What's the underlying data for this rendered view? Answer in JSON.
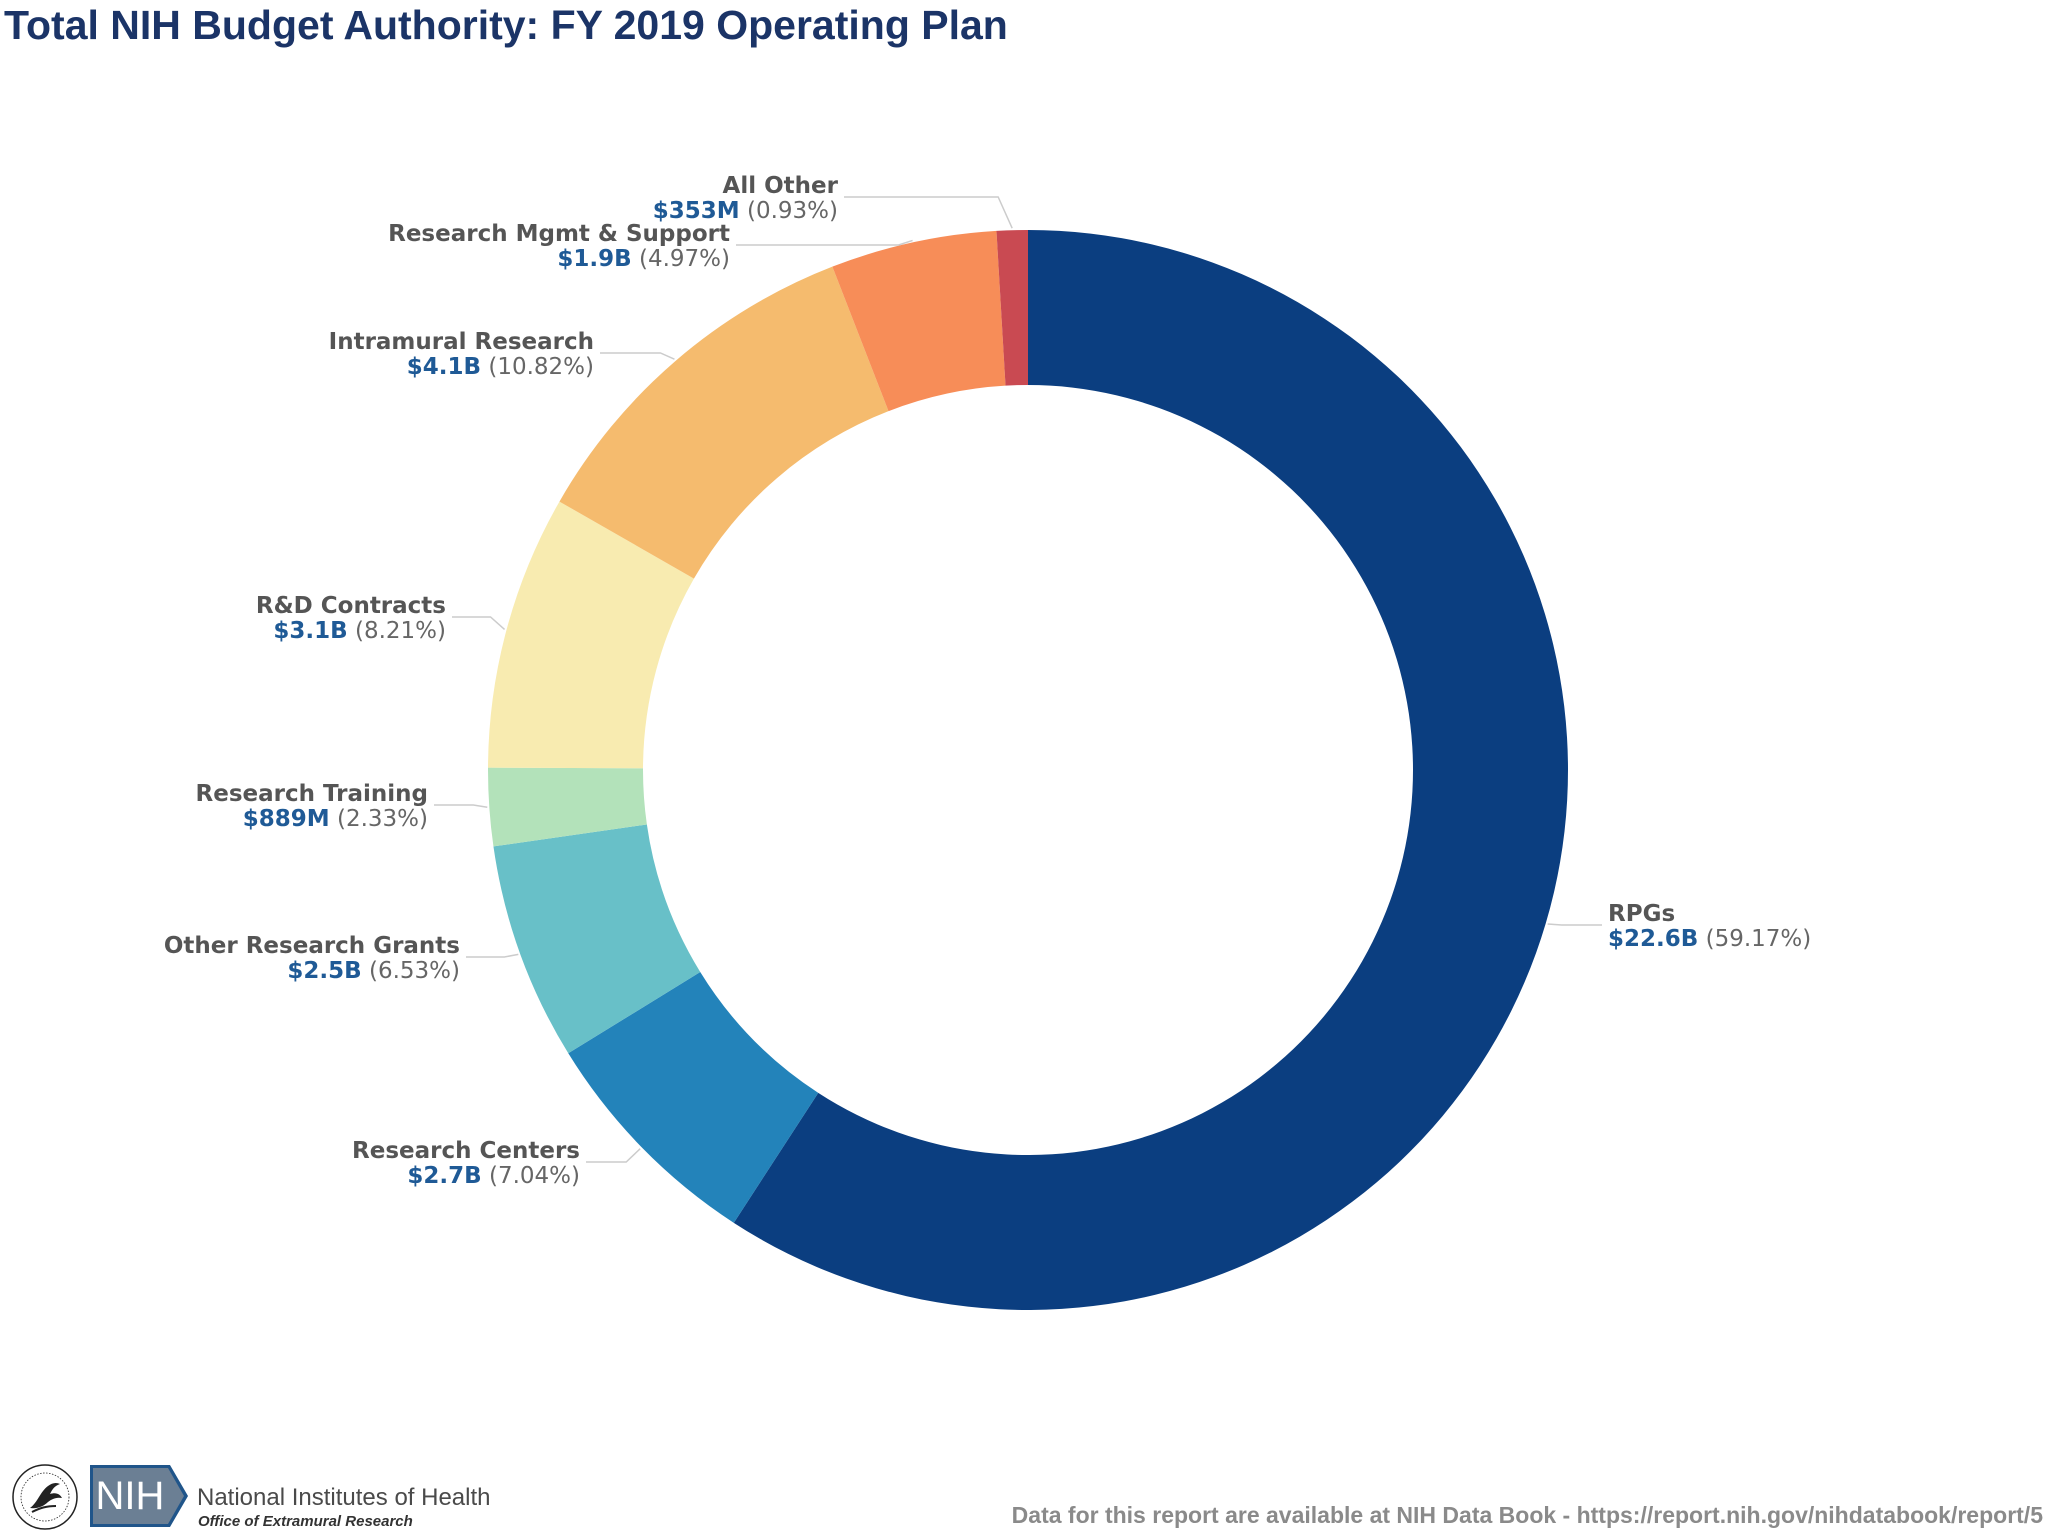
{
  "title": "Total NIH Budget Authority: FY 2019 Operating Plan",
  "chart_data": {
    "type": "pie",
    "variant": "donut",
    "title": "Total NIH Budget Authority: FY 2019 Operating Plan",
    "slices": [
      {
        "name": "RPGs",
        "amount": "$22.6B",
        "percent": "(59.17%)",
        "value": 59.17,
        "color": "#0b3e80"
      },
      {
        "name": "Research Centers",
        "amount": "$2.7B",
        "percent": "(7.04%)",
        "value": 7.04,
        "color": "#2383ba"
      },
      {
        "name": "Other Research Grants",
        "amount": "$2.5B",
        "percent": "(6.53%)",
        "value": 6.53,
        "color": "#68c0c8"
      },
      {
        "name": "Research Training",
        "amount": "$889M",
        "percent": "(2.33%)",
        "value": 2.33,
        "color": "#b3e2ba"
      },
      {
        "name": "R&D Contracts",
        "amount": "$3.1B",
        "percent": "(8.21%)",
        "value": 8.21,
        "color": "#f8ebb0"
      },
      {
        "name": "Intramural Research",
        "amount": "$4.1B",
        "percent": "(10.82%)",
        "value": 10.82,
        "color": "#f5bb6e"
      },
      {
        "name": "Research Mgmt & Support",
        "amount": "$1.9B",
        "percent": "(4.97%)",
        "value": 4.97,
        "color": "#f78d58"
      },
      {
        "name": "All Other",
        "amount": "$353M",
        "percent": "(0.93%)",
        "value": 0.93,
        "color": "#c94a52"
      }
    ]
  },
  "footer": {
    "org_name": "National Institutes of Health",
    "office_name": "Office of Extramural Research",
    "logo_text": "NIH",
    "note": "Data for this report are available at NIH Data Book - https://report.nih.gov/nihdatabook/report/5"
  }
}
